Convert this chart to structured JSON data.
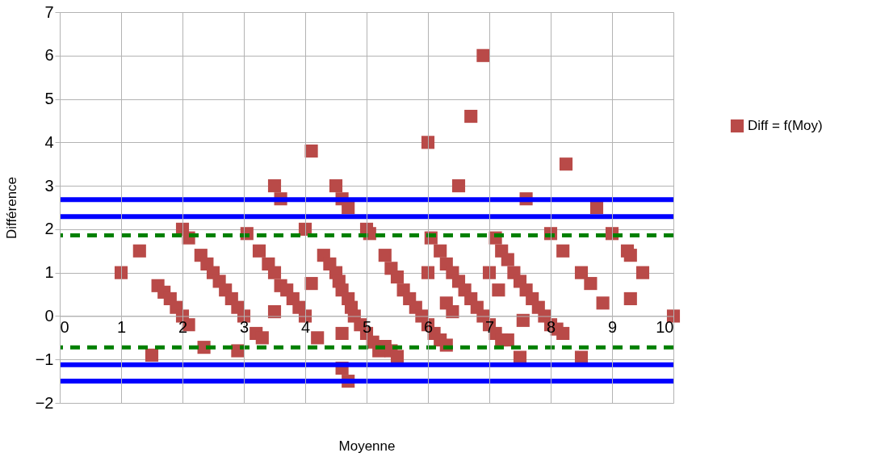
{
  "chart_data": {
    "type": "scatter",
    "xlabel": "Moyenne",
    "ylabel": "Différence",
    "x": [
      1.0,
      1.3,
      1.5,
      1.6,
      1.7,
      1.8,
      1.9,
      2.0,
      2.1,
      2.0,
      2.1,
      2.3,
      2.4,
      2.5,
      2.6,
      2.7,
      2.8,
      2.9,
      3.0,
      2.35,
      2.9,
      3.05,
      3.25,
      3.4,
      3.5,
      3.6,
      3.7,
      3.8,
      3.9,
      4.0,
      3.2,
      3.3,
      3.5,
      3.5,
      3.6,
      4.0,
      4.1,
      4.1,
      4.2,
      4.3,
      4.4,
      4.5,
      4.55,
      4.6,
      4.7,
      4.75,
      4.8,
      4.9,
      5.0,
      5.1,
      5.2,
      5.3,
      5.4,
      5.5,
      4.5,
      4.6,
      4.7,
      4.6,
      4.6,
      4.7,
      5.0,
      5.05,
      5.3,
      5.4,
      5.5,
      5.6,
      5.7,
      5.8,
      5.9,
      6.0,
      6.1,
      6.2,
      6.3,
      6.0,
      6.0,
      6.05,
      6.3,
      6.4,
      6.5,
      6.7,
      6.9,
      6.2,
      6.3,
      6.4,
      6.5,
      6.6,
      6.7,
      6.8,
      6.9,
      7.0,
      7.1,
      7.2,
      7.3,
      7.1,
      7.2,
      7.3,
      7.4,
      7.5,
      7.6,
      7.7,
      7.8,
      7.9,
      8.0,
      8.1,
      8.2,
      7.0,
      7.15,
      7.55,
      7.5,
      7.6,
      8.0,
      8.2,
      8.25,
      8.5,
      8.65,
      8.85,
      8.5,
      8.75,
      9.0,
      9.25,
      9.3,
      9.5,
      9.3,
      10.0
    ],
    "series": [
      {
        "name": "Diff = f(Moy)",
        "color": "#b94a48",
        "values": [
          1.0,
          1.5,
          -0.9,
          0.7,
          0.55,
          0.4,
          0.2,
          0.0,
          -0.2,
          2.0,
          1.8,
          1.4,
          1.2,
          1.0,
          0.8,
          0.6,
          0.4,
          0.2,
          0.0,
          -0.72,
          -0.8,
          1.9,
          1.5,
          1.2,
          1.0,
          0.7,
          0.6,
          0.4,
          0.2,
          0.0,
          -0.4,
          -0.5,
          0.1,
          3.0,
          2.7,
          2.0,
          3.8,
          0.75,
          -0.5,
          1.4,
          1.2,
          1.0,
          0.8,
          0.6,
          0.4,
          0.2,
          0.0,
          -0.2,
          -0.4,
          -0.6,
          -0.8,
          -0.7,
          -0.8,
          -0.93,
          3.0,
          2.7,
          2.5,
          -0.4,
          -1.2,
          -1.5,
          2.0,
          1.9,
          1.4,
          1.1,
          0.9,
          0.6,
          0.4,
          0.2,
          0.0,
          -0.2,
          -0.4,
          -0.55,
          -0.67,
          4.0,
          1.0,
          1.8,
          0.3,
          0.1,
          3.0,
          4.6,
          6.0,
          1.5,
          1.2,
          1.0,
          0.8,
          0.6,
          0.4,
          0.2,
          0.0,
          -0.2,
          -0.4,
          -0.55,
          -0.55,
          1.8,
          1.5,
          1.3,
          1.0,
          0.8,
          0.6,
          0.4,
          0.2,
          0.0,
          -0.2,
          -0.3,
          -0.4,
          1.0,
          0.6,
          -0.1,
          -0.95,
          2.7,
          1.9,
          1.5,
          3.5,
          1.0,
          0.75,
          0.3,
          -0.95,
          2.5,
          1.9,
          1.5,
          1.4,
          1.0,
          0.4,
          0.0
        ]
      }
    ],
    "marker": "square",
    "legend": "right",
    "grid": true,
    "xlim": [
      0,
      10
    ],
    "xticks": [
      0,
      1,
      2,
      3,
      4,
      5,
      6,
      7,
      8,
      9,
      10
    ],
    "ylim": [
      -2,
      7
    ],
    "yticks": [
      -2,
      -1,
      0,
      1,
      2,
      3,
      4,
      5,
      6,
      7
    ],
    "ref_lines": [
      {
        "axis": "y",
        "value": 2.68,
        "color": "#0000ff",
        "line_style": "solid"
      },
      {
        "axis": "y",
        "value": 2.29,
        "color": "#0000ff",
        "line_style": "solid"
      },
      {
        "axis": "y",
        "value": 1.86,
        "color": "#008000",
        "line_style": "dashed"
      },
      {
        "axis": "y",
        "value": -0.72,
        "color": "#008000",
        "line_style": "dashed"
      },
      {
        "axis": "y",
        "value": -1.12,
        "color": "#0000ff",
        "line_style": "solid"
      },
      {
        "axis": "y",
        "value": -1.5,
        "color": "#0000ff",
        "line_style": "solid"
      }
    ]
  }
}
